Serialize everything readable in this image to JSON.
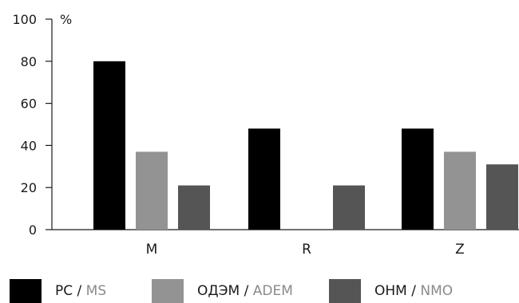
{
  "chart_data": {
    "type": "bar",
    "categories": [
      "M",
      "R",
      "Z"
    ],
    "series": [
      {
        "name": "РС / MS",
        "name_ru": "РС",
        "name_en": "MS",
        "color": "#000000",
        "values": [
          80,
          48,
          48
        ]
      },
      {
        "name": "ОДЭМ / ADEM",
        "name_ru": "ОДЭМ",
        "name_en": "ADEM",
        "color": "#939393",
        "values": [
          37,
          0,
          37
        ]
      },
      {
        "name": "ОНМ / NMO",
        "name_ru": "ОНМ",
        "name_en": "NMO",
        "color": "#555555",
        "values": [
          21,
          21,
          31
        ]
      }
    ],
    "ylim": [
      0,
      100
    ],
    "yticks": [
      0,
      20,
      40,
      60,
      80,
      100
    ],
    "ylabel": "%",
    "xlabel": "",
    "grid": false,
    "legend_position": "bottom"
  }
}
